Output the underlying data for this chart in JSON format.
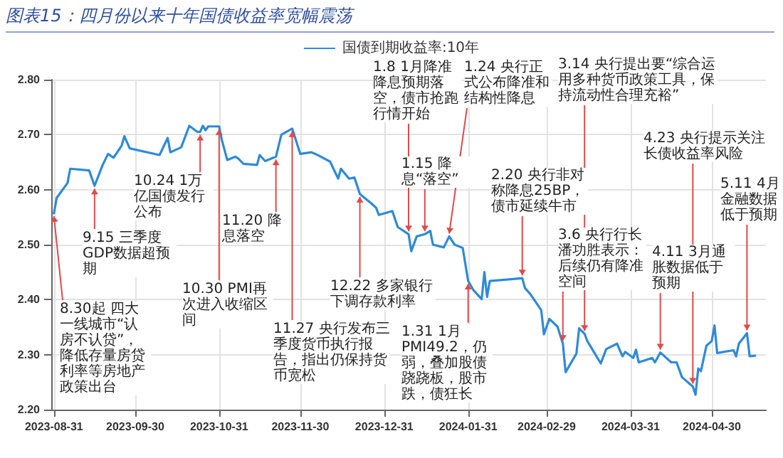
{
  "chart_data": {
    "type": "line",
    "title": "图表15：四月份以来十年国债收益率宽幅震荡",
    "x": [
      "2023-08-31",
      "2023-09-01",
      "2023-09-05",
      "2023-09-06",
      "2023-09-13",
      "2023-09-15",
      "2023-09-18",
      "2023-09-20",
      "2023-09-22",
      "2023-09-25",
      "2023-09-26",
      "2023-09-28",
      "2023-10-09",
      "2023-10-12",
      "2023-10-13",
      "2023-10-17",
      "2023-10-20",
      "2023-10-23",
      "2023-10-24",
      "2023-10-25",
      "2023-10-26",
      "2023-10-27",
      "2023-10-31",
      "2023-11-01",
      "2023-11-03",
      "2023-11-06",
      "2023-11-07",
      "2023-11-09",
      "2023-11-14",
      "2023-11-15",
      "2023-11-17",
      "2023-11-21",
      "2023-11-23",
      "2023-11-27",
      "2023-11-30",
      "2023-12-04",
      "2023-12-06",
      "2023-12-11",
      "2023-12-14",
      "2023-12-15",
      "2023-12-18",
      "2023-12-20",
      "2023-12-22",
      "2023-12-26",
      "2023-12-28",
      "2023-12-29",
      "2024-01-03",
      "2024-01-05",
      "2024-01-09",
      "2024-01-10",
      "2024-01-12",
      "2024-01-15",
      "2024-01-17",
      "2024-01-18",
      "2024-01-22",
      "2024-01-24",
      "2024-01-26",
      "2024-01-29",
      "2024-01-31",
      "2024-02-02",
      "2024-02-05",
      "2024-02-06",
      "2024-02-07",
      "2024-02-08",
      "2024-02-18",
      "2024-02-20",
      "2024-02-21",
      "2024-02-23",
      "2024-02-27",
      "2024-02-28",
      "2024-03-01",
      "2024-03-04",
      "2024-03-06",
      "2024-03-07",
      "2024-03-11",
      "2024-03-12",
      "2024-03-14",
      "2024-03-15",
      "2024-03-20",
      "2024-03-22",
      "2024-03-26",
      "2024-03-28",
      "2024-03-29",
      "2024-04-01",
      "2024-04-02",
      "2024-04-03",
      "2024-04-08",
      "2024-04-09",
      "2024-04-11",
      "2024-04-15",
      "2024-04-17",
      "2024-04-19",
      "2024-04-23",
      "2024-04-24",
      "2024-04-25",
      "2024-04-26",
      "2024-04-28",
      "2024-04-30",
      "2024-05-01",
      "2024-05-02",
      "2024-05-08",
      "2024-05-09",
      "2024-05-10",
      "2024-05-13",
      "2024-05-14",
      "2024-05-16"
    ],
    "series": [
      {
        "name": "国债到期收益率:10年",
        "color": "#2e8ad8",
        "values": [
          2.557,
          2.585,
          2.612,
          2.638,
          2.635,
          2.607,
          2.645,
          2.665,
          2.658,
          2.68,
          2.697,
          2.675,
          2.663,
          2.694,
          2.668,
          2.677,
          2.716,
          2.705,
          2.705,
          2.716,
          2.708,
          2.715,
          2.715,
          2.691,
          2.654,
          2.66,
          2.657,
          2.647,
          2.645,
          2.663,
          2.652,
          2.66,
          2.7,
          2.711,
          2.665,
          2.668,
          2.664,
          2.651,
          2.62,
          2.638,
          2.62,
          2.622,
          2.592,
          2.576,
          2.567,
          2.554,
          2.561,
          2.532,
          2.519,
          2.488,
          2.515,
          2.519,
          2.525,
          2.5,
          2.495,
          2.515,
          2.5,
          2.494,
          2.434,
          2.417,
          2.401,
          2.45,
          2.405,
          2.434,
          2.438,
          2.439,
          2.421,
          2.41,
          2.381,
          2.337,
          2.365,
          2.351,
          2.32,
          2.268,
          2.302,
          2.348,
          2.338,
          2.325,
          2.284,
          2.31,
          2.32,
          2.297,
          2.305,
          2.294,
          2.309,
          2.286,
          2.294,
          2.286,
          2.304,
          2.286,
          2.286,
          2.259,
          2.242,
          2.227,
          2.275,
          2.27,
          2.316,
          2.325,
          2.353,
          2.303,
          2.308,
          2.297,
          2.32,
          2.339,
          2.297,
          2.298
        ]
      }
    ],
    "xlim": [
      "2023-08-30",
      "2024-05-20"
    ],
    "xticks": [
      "2023-08-31",
      "2023-09-30",
      "2023-10-31",
      "2023-11-30",
      "2023-12-31",
      "2024-01-31",
      "2024-02-29",
      "2024-03-31",
      "2024-04-30"
    ],
    "ylim": [
      2.2,
      2.8
    ],
    "yticks": [
      {
        "value": 2.2,
        "label": "2.20"
      },
      {
        "value": 2.3,
        "label": "2.30"
      },
      {
        "value": 2.4,
        "label": "2.40"
      },
      {
        "value": 2.5,
        "label": "2.50"
      },
      {
        "value": 2.6,
        "label": "2.60"
      },
      {
        "value": 2.7,
        "label": "2.70"
      },
      {
        "value": 2.8,
        "label": "2.80"
      }
    ],
    "grid": true,
    "legend": "top",
    "line_style": "solid",
    "annotations": [
      {
        "text": "8.30起 四大一线城市“认房不认贷”，降低存量房贷利率等房地产政策出台",
        "x": "2023-08-31",
        "y": 2.557
      },
      {
        "text": "9.15 三季度GDP数据超预期",
        "x": "2023-09-15",
        "y": 2.607
      },
      {
        "text": "10.24 1万亿国债发行公布",
        "x": "2023-10-24",
        "y": 2.705
      },
      {
        "text": "10.30 PMI再次进入收缩区间",
        "x": "2023-10-31",
        "y": 2.715
      },
      {
        "text": "11.20 降息落空",
        "x": "2023-11-21",
        "y": 2.66
      },
      {
        "text": "11.27 央行发布三季度货币执行报告，指出仍保持货币宽松",
        "x": "2023-11-27",
        "y": 2.711
      },
      {
        "text": "12.22 多家银行下调存款利率",
        "x": "2023-12-22",
        "y": 2.592
      },
      {
        "text": "1.8 1月降准降息预期落空，债市抢跑行情开始",
        "x": "2024-01-09",
        "y": 2.519
      },
      {
        "text": "1.15 降息“落空”",
        "x": "2024-01-15",
        "y": 2.519
      },
      {
        "text": "1.24 央行正式公布降准和结构性降息",
        "x": "2024-01-24",
        "y": 2.515
      },
      {
        "text": "1.31 1月PMI49.2，仍弱，叠加股债跷跷板，股市跌，债狂长",
        "x": "2024-01-31",
        "y": 2.434
      },
      {
        "text": "2.20 央行非对称降息25BP，债市延续牛市",
        "x": "2024-02-20",
        "y": 2.439
      },
      {
        "text": "3.6 央行行长潘功胜表示：后续仍有降准空间",
        "x": "2024-03-06",
        "y": 2.32
      },
      {
        "text": "3.14 央行提出要“综合运用多种货币政策工具，保持流动性合理充裕”",
        "x": "2024-03-14",
        "y": 2.338
      },
      {
        "text": "4.11 3月通胀数据低于预期",
        "x": "2024-04-11",
        "y": 2.304
      },
      {
        "text": "4.23 央行提示关注长债收益率风险",
        "x": "2024-04-23",
        "y": 2.242
      },
      {
        "text": "5.11 4月金融数据低于预期",
        "x": "2024-05-13",
        "y": 2.339
      }
    ]
  }
}
